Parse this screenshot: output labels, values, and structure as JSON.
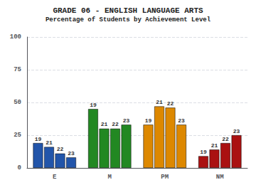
{
  "chart_data": {
    "type": "bar",
    "title": "GRADE 06 - ENGLISH LANGUAGE ARTS",
    "subtitle": "Percentage of Students by Achievement Level",
    "categories": [
      "E",
      "M",
      "PM",
      "NM"
    ],
    "series": [
      {
        "name": "19",
        "values": [
          19,
          45,
          33,
          9
        ],
        "colors": [
          "#2255aa",
          "#228822",
          "#dd8800",
          "#aa1111"
        ]
      },
      {
        "name": "21",
        "values": [
          16,
          30,
          47,
          14
        ],
        "colors": [
          "#2255aa",
          "#228822",
          "#dd8800",
          "#aa1111"
        ]
      },
      {
        "name": "22",
        "values": [
          11,
          30,
          46,
          19
        ],
        "colors": [
          "#2255aa",
          "#228822",
          "#dd8800",
          "#aa1111"
        ]
      },
      {
        "name": "23",
        "values": [
          8,
          33,
          33,
          25
        ],
        "colors": [
          "#2255aa",
          "#228822",
          "#dd8800",
          "#aa1111"
        ]
      }
    ],
    "ylim": [
      0,
      100
    ],
    "yticks": [
      0,
      25,
      50,
      75,
      100
    ],
    "grid": true
  }
}
